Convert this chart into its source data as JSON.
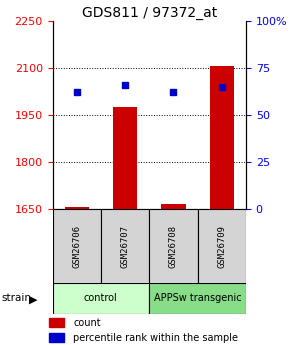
{
  "title": "GDS811 / 97372_at",
  "samples": [
    "GSM26706",
    "GSM26707",
    "GSM26708",
    "GSM26709"
  ],
  "count_values": [
    1655,
    1975,
    1665,
    2105
  ],
  "percentile_values": [
    62,
    66,
    62,
    65
  ],
  "ylim_left": [
    1650,
    2250
  ],
  "ylim_right": [
    0,
    100
  ],
  "yticks_left": [
    1650,
    1800,
    1950,
    2100,
    2250
  ],
  "yticks_right": [
    0,
    25,
    50,
    75,
    100
  ],
  "ytick_labels_right": [
    "0",
    "25",
    "50",
    "75",
    "100%"
  ],
  "bar_color": "#cc0000",
  "dot_color": "#0000cc",
  "bar_baseline": 1650,
  "grid_lines": [
    1800,
    1950,
    2100
  ],
  "control_color": "#ccffcc",
  "transgenic_color": "#88dd88",
  "sample_box_color": "#d4d4d4",
  "legend_items": [
    {
      "label": "count",
      "color": "#cc0000"
    },
    {
      "label": "percentile rank within the sample",
      "color": "#0000cc"
    }
  ]
}
